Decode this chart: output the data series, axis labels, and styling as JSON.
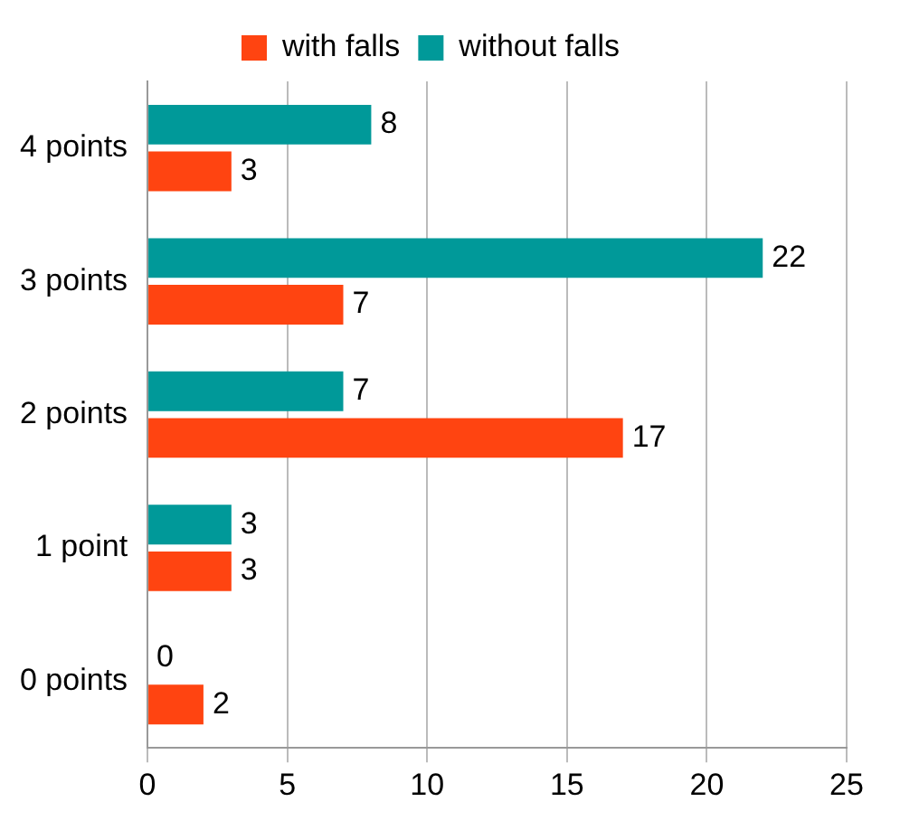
{
  "chart_data": {
    "type": "bar",
    "orientation": "horizontal",
    "categories": [
      "4 points",
      "3 points",
      "2 points",
      "1 point",
      "0 points"
    ],
    "series": [
      {
        "name": "with falls",
        "color": "#ff4411",
        "values": [
          3,
          7,
          17,
          3,
          2
        ]
      },
      {
        "name": "without falls",
        "color": "#009999",
        "values": [
          8,
          22,
          7,
          3,
          0
        ]
      }
    ],
    "xlim": [
      0,
      25
    ],
    "xticks": [
      0,
      5,
      10,
      15,
      20,
      25
    ],
    "grid": "x",
    "legend": "top",
    "data_labels": true
  }
}
